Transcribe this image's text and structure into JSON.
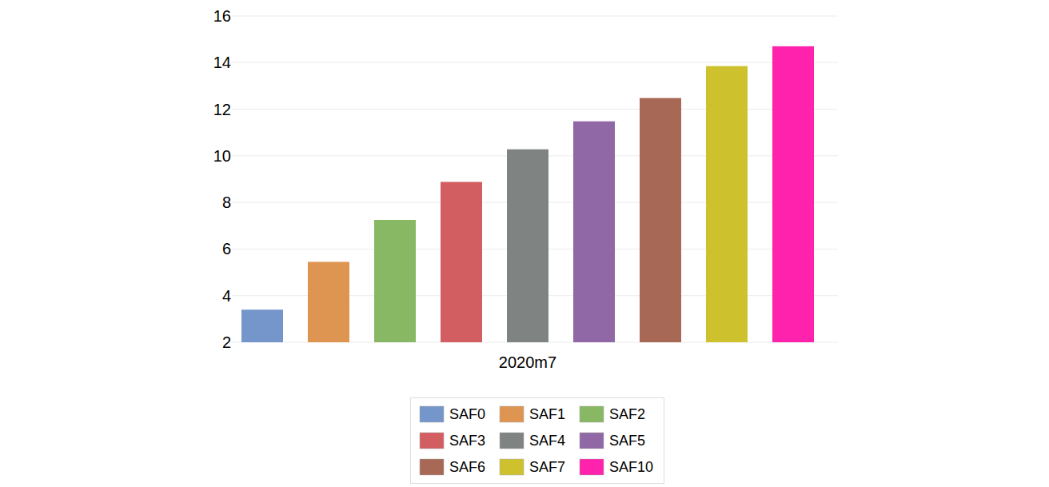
{
  "chart_data": {
    "type": "bar",
    "categories": [
      "2020m7"
    ],
    "series": [
      {
        "name": "SAF0",
        "color": "#7596cb",
        "values": [
          3.4
        ]
      },
      {
        "name": "SAF1",
        "color": "#de9552",
        "values": [
          5.45
        ]
      },
      {
        "name": "SAF2",
        "color": "#88b863",
        "values": [
          7.25
        ]
      },
      {
        "name": "SAF3",
        "color": "#d25e62",
        "values": [
          8.88
        ]
      },
      {
        "name": "SAF4",
        "color": "#7f8482",
        "values": [
          10.28
        ]
      },
      {
        "name": "SAF5",
        "color": "#9068a5",
        "values": [
          11.48
        ]
      },
      {
        "name": "SAF6",
        "color": "#a86856",
        "values": [
          12.48
        ]
      },
      {
        "name": "SAF7",
        "color": "#cdc22d",
        "values": [
          13.85
        ]
      },
      {
        "name": "SAF10",
        "color": "#fe22ac",
        "values": [
          14.7
        ]
      }
    ],
    "ylim": [
      2,
      16
    ],
    "yticks": [
      2,
      4,
      6,
      8,
      10,
      12,
      14,
      16
    ],
    "grid": true,
    "legend": "bottom"
  }
}
